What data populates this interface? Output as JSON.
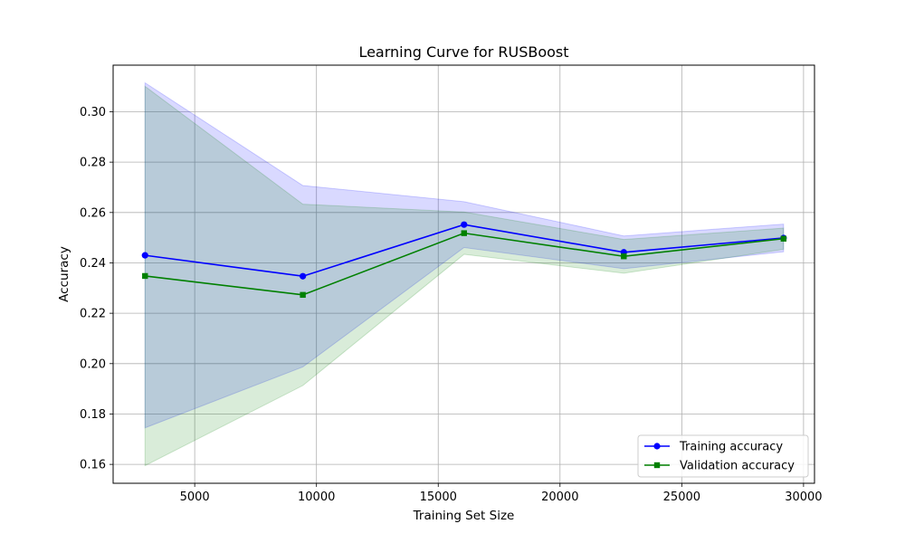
{
  "chart_data": {
    "type": "line",
    "title": "Learning Curve for RUSBoost",
    "xlabel": "Training Set Size",
    "ylabel": "Accuracy",
    "xlim": [
      1650,
      30450
    ],
    "ylim": [
      0.1525,
      0.3185
    ],
    "x_ticks": [
      5000,
      10000,
      15000,
      20000,
      25000,
      30000
    ],
    "y_ticks": [
      0.16,
      0.18,
      0.2,
      0.22,
      0.24,
      0.26,
      0.28,
      0.3
    ],
    "y_tick_labels": [
      "0.16",
      "0.18",
      "0.20",
      "0.22",
      "0.24",
      "0.26",
      "0.28",
      "0.30"
    ],
    "grid": true,
    "legend_position": "bottom-right",
    "x": [
      2960,
      9440,
      16060,
      22620,
      29180
    ],
    "series": [
      {
        "name": "Training accuracy",
        "color": "#0000ff",
        "band_color": "#0000ff",
        "marker": "circle",
        "values": [
          0.243,
          0.2347,
          0.2552,
          0.2442,
          0.2499
        ],
        "upper": [
          0.3115,
          0.2707,
          0.2643,
          0.2507,
          0.2554
        ],
        "lower": [
          0.1745,
          0.1987,
          0.2461,
          0.2377,
          0.2444
        ]
      },
      {
        "name": "Validation accuracy",
        "color": "#008000",
        "band_color": "#008000",
        "marker": "square",
        "values": [
          0.2348,
          0.2273,
          0.2518,
          0.2426,
          0.2496
        ],
        "upper": [
          0.3101,
          0.2633,
          0.2602,
          0.2493,
          0.2538
        ],
        "lower": [
          0.1595,
          0.1913,
          0.2434,
          0.2359,
          0.2454
        ]
      }
    ]
  }
}
